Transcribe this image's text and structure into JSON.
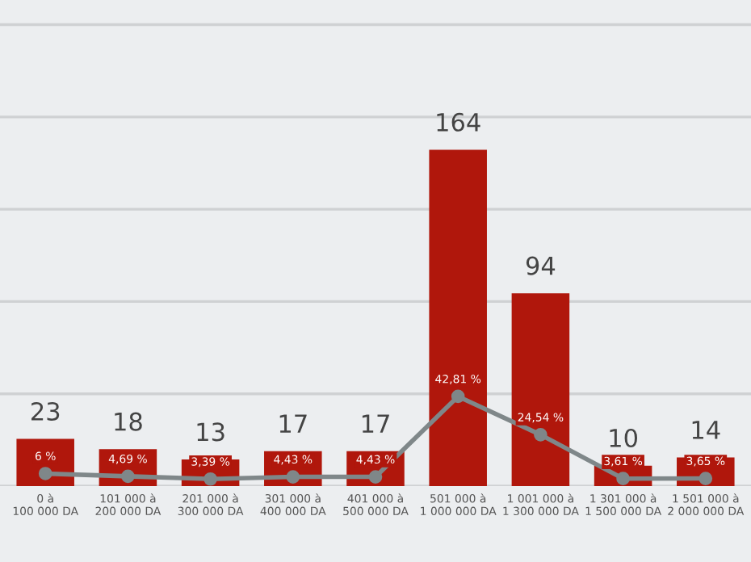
{
  "chart_data": {
    "type": "bar",
    "categories": [
      "0 à\n100 000 DA",
      "101 000 à\n200 000 DA",
      "201 000 à\n300 000 DA",
      "301 000 à\n400 000 DA",
      "401 000 à\n500 000 DA",
      "501 000 à\n1 000 000 DA",
      "1 001 000 à\n1 300 000 DA",
      "1 301 000 à\n1 500 000 DA",
      "1 501 000 à\n2 000 000 DA"
    ],
    "series": [
      {
        "color": "#b0170c",
        "values": [
          23,
          18,
          13,
          17,
          17,
          164,
          94,
          10,
          14
        ]
      },
      {
        "type": "line",
        "axis": "y2",
        "color": "#7f8789",
        "marker": "circle",
        "values": [
          6,
          4.69,
          3.39,
          4.43,
          4.43,
          42.81,
          24.54,
          3.61,
          3.65
        ],
        "value_labels": [
          "6 %",
          "4,69 %",
          "3,39 %",
          "4,43 %",
          "4,43 %",
          "42,81 %",
          "24,54 %",
          "3,61 %",
          "3,65 %"
        ]
      }
    ],
    "data_labels": true,
    "ylim": [
      0,
      237
    ],
    "yticks": [
      {
        "value": 0,
        "label": null
      },
      {
        "value": 45,
        "label": null
      },
      {
        "value": 90,
        "label": null
      },
      {
        "value": 135,
        "label": null
      },
      {
        "value": 180,
        "label": null
      },
      {
        "value": 225,
        "label": null
      }
    ],
    "y2lim": [
      0,
      232
    ],
    "grid": "y",
    "tick_labels": "x"
  }
}
